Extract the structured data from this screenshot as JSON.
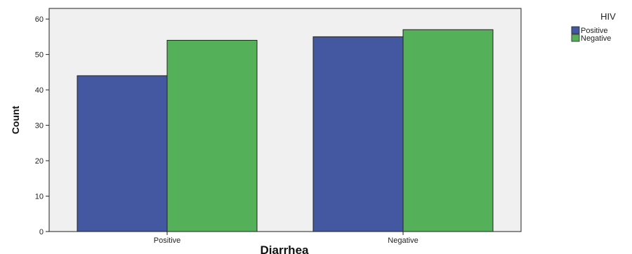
{
  "chart_data": {
    "type": "bar",
    "title": "",
    "xlabel": "Diarrhea",
    "ylabel": "Count",
    "categories": [
      "Positive",
      "Negative"
    ],
    "series": [
      {
        "name": "Positive",
        "color": "#4358A0",
        "values": [
          44,
          55
        ]
      },
      {
        "name": "Negative",
        "color": "#55B05A",
        "values": [
          54,
          57
        ]
      }
    ],
    "ylim": [
      0,
      63
    ],
    "yticks": [
      0,
      10,
      20,
      30,
      40,
      50,
      60
    ],
    "grid": false,
    "legend": {
      "title": "HIV",
      "placement": "top-right"
    },
    "plot_background": "#F0F0F0"
  }
}
